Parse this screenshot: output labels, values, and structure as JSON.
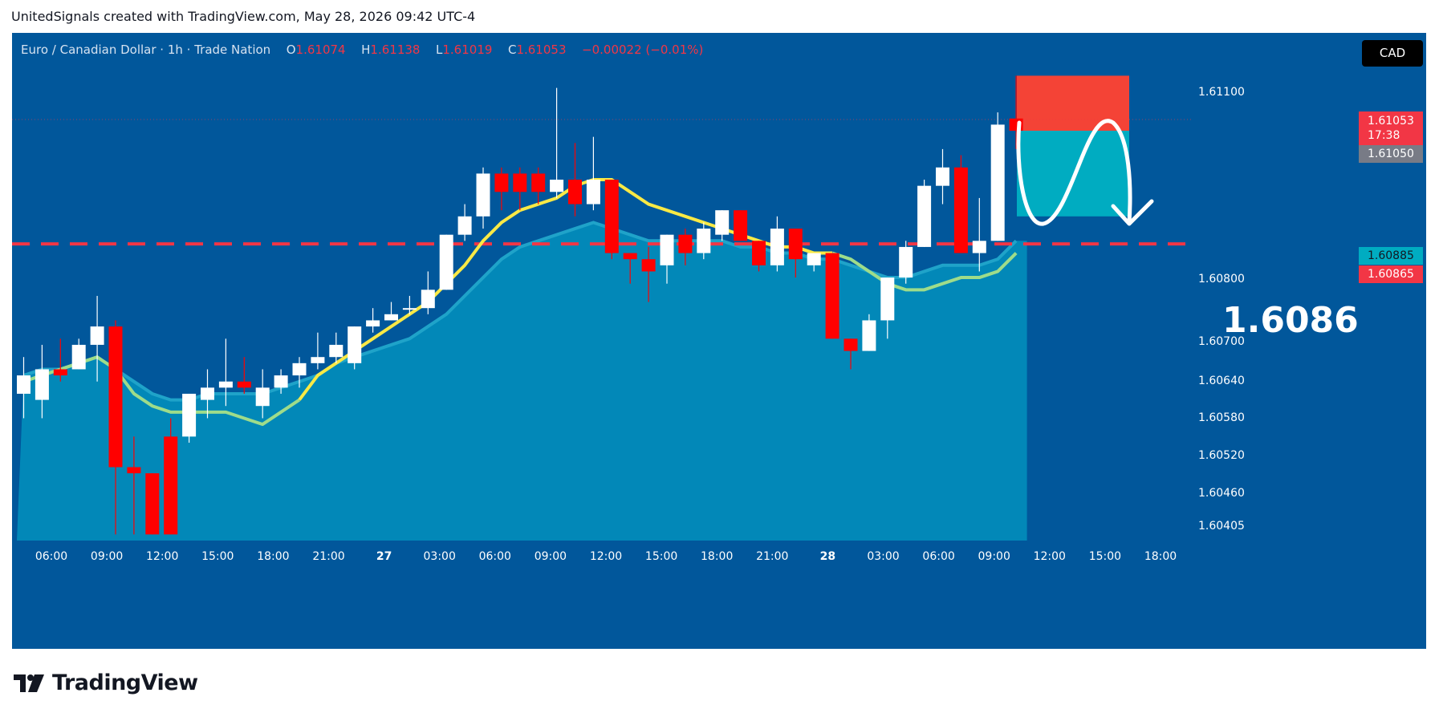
{
  "header": {
    "caption": "UnitedSignals created with TradingView.com, May 28, 2026 09:42 UTC-4"
  },
  "legend": {
    "symbol": "Euro / Canadian Dollar · 1h · Trade Nation",
    "open_label": "O",
    "open": "1.61074",
    "high_label": "H",
    "high": "1.61138",
    "low_label": "L",
    "low": "1.61019",
    "close_label": "C",
    "close": "1.61053",
    "change": "−0.00022 (−0.01%)"
  },
  "currency_button": "CAD",
  "price_tags": {
    "last_price": "1.61053",
    "countdown": "17:38",
    "grey_level": "1.61050",
    "teal_level": "1.60885",
    "red_level": "1.60865"
  },
  "target_label": "1.6086",
  "colors": {
    "background": "#01579b",
    "area_fill": "#0288b8",
    "bull_candle": "#ffffff",
    "bear_candle": "#ff0000",
    "ma_yellow": "#f9e945",
    "ma_green": "#9edc8a",
    "dashed_line": "#f23645",
    "stop_zone": "#f44336",
    "target_zone": "#00acc1"
  },
  "footer": {
    "brand": "TradingView",
    "logo_icon": "tradingview-logo-icon"
  },
  "chart_data": {
    "type": "candlestick",
    "y_ticks": [
      "1.61100",
      "1.60800",
      "1.60700",
      "1.60640",
      "1.60580",
      "1.60520",
      "1.60460",
      "1.60405"
    ],
    "ylim": [
      1.6038,
      1.6121
    ],
    "x_ticks": [
      "06:00",
      "09:00",
      "12:00",
      "15:00",
      "18:00",
      "21:00",
      "27",
      "03:00",
      "06:00",
      "09:00",
      "12:00",
      "15:00",
      "18:00",
      "21:00",
      "28",
      "03:00",
      "06:00",
      "09:00",
      "12:00",
      "15:00",
      "18:00"
    ],
    "candles": [
      {
        "o": 1.6062,
        "h": 1.6068,
        "l": 1.6058,
        "c": 1.6065
      },
      {
        "o": 1.6061,
        "h": 1.607,
        "l": 1.6058,
        "c": 1.6066
      },
      {
        "o": 1.6066,
        "h": 1.6071,
        "l": 1.6064,
        "c": 1.6065
      },
      {
        "o": 1.6066,
        "h": 1.6071,
        "l": 1.6066,
        "c": 1.607
      },
      {
        "o": 1.607,
        "h": 1.6078,
        "l": 1.6064,
        "c": 1.6073
      },
      {
        "o": 1.6073,
        "h": 1.6074,
        "l": 1.6039,
        "c": 1.605
      },
      {
        "o": 1.605,
        "h": 1.6055,
        "l": 1.6039,
        "c": 1.6049
      },
      {
        "o": 1.6049,
        "h": 1.6049,
        "l": 1.6039,
        "c": 1.6039
      },
      {
        "o": 1.6055,
        "h": 1.6058,
        "l": 1.6039,
        "c": 1.6039
      },
      {
        "o": 1.6055,
        "h": 1.6062,
        "l": 1.6054,
        "c": 1.6062
      },
      {
        "o": 1.6061,
        "h": 1.6066,
        "l": 1.6058,
        "c": 1.6063
      },
      {
        "o": 1.6063,
        "h": 1.6071,
        "l": 1.606,
        "c": 1.6064
      },
      {
        "o": 1.6064,
        "h": 1.6068,
        "l": 1.6062,
        "c": 1.6063
      },
      {
        "o": 1.606,
        "h": 1.6066,
        "l": 1.6058,
        "c": 1.6063
      },
      {
        "o": 1.6063,
        "h": 1.6066,
        "l": 1.6062,
        "c": 1.6065
      },
      {
        "o": 1.6065,
        "h": 1.6068,
        "l": 1.6063,
        "c": 1.6067
      },
      {
        "o": 1.6067,
        "h": 1.6072,
        "l": 1.6066,
        "c": 1.6068
      },
      {
        "o": 1.6068,
        "h": 1.6072,
        "l": 1.6067,
        "c": 1.607
      },
      {
        "o": 1.6067,
        "h": 1.6073,
        "l": 1.6066,
        "c": 1.6073
      },
      {
        "o": 1.6073,
        "h": 1.6076,
        "l": 1.6072,
        "c": 1.6074
      },
      {
        "o": 1.6074,
        "h": 1.6077,
        "l": 1.6074,
        "c": 1.6075
      },
      {
        "o": 1.6076,
        "h": 1.6078,
        "l": 1.6075,
        "c": 1.6076
      },
      {
        "o": 1.6076,
        "h": 1.6082,
        "l": 1.6075,
        "c": 1.6079
      },
      {
        "o": 1.6079,
        "h": 1.6088,
        "l": 1.6079,
        "c": 1.6088
      },
      {
        "o": 1.6088,
        "h": 1.6093,
        "l": 1.6087,
        "c": 1.6091
      },
      {
        "o": 1.6091,
        "h": 1.6099,
        "l": 1.6089,
        "c": 1.6098
      },
      {
        "o": 1.6098,
        "h": 1.6099,
        "l": 1.6092,
        "c": 1.6095
      },
      {
        "o": 1.6098,
        "h": 1.6099,
        "l": 1.6092,
        "c": 1.6095
      },
      {
        "o": 1.6098,
        "h": 1.6099,
        "l": 1.6093,
        "c": 1.6095
      },
      {
        "o": 1.6095,
        "h": 1.6112,
        "l": 1.6094,
        "c": 1.6097
      },
      {
        "o": 1.6097,
        "h": 1.6103,
        "l": 1.6091,
        "c": 1.6093
      },
      {
        "o": 1.6093,
        "h": 1.6104,
        "l": 1.6092,
        "c": 1.6097
      },
      {
        "o": 1.6097,
        "h": 1.6097,
        "l": 1.6084,
        "c": 1.6085
      },
      {
        "o": 1.6085,
        "h": 1.6085,
        "l": 1.608,
        "c": 1.6084
      },
      {
        "o": 1.6084,
        "h": 1.6086,
        "l": 1.6077,
        "c": 1.6082
      },
      {
        "o": 1.6083,
        "h": 1.6088,
        "l": 1.608,
        "c": 1.6088
      },
      {
        "o": 1.6088,
        "h": 1.6089,
        "l": 1.6083,
        "c": 1.6085
      },
      {
        "o": 1.6085,
        "h": 1.609,
        "l": 1.6084,
        "c": 1.6089
      },
      {
        "o": 1.6088,
        "h": 1.6092,
        "l": 1.6087,
        "c": 1.6092
      },
      {
        "o": 1.6092,
        "h": 1.6092,
        "l": 1.6087,
        "c": 1.6087
      },
      {
        "o": 1.6087,
        "h": 1.6087,
        "l": 1.6082,
        "c": 1.6083
      },
      {
        "o": 1.6083,
        "h": 1.6091,
        "l": 1.6082,
        "c": 1.6089
      },
      {
        "o": 1.6089,
        "h": 1.6089,
        "l": 1.6081,
        "c": 1.6084
      },
      {
        "o": 1.6083,
        "h": 1.6085,
        "l": 1.6082,
        "c": 1.6085
      },
      {
        "o": 1.6085,
        "h": 1.6085,
        "l": 1.6071,
        "c": 1.6071
      },
      {
        "o": 1.6071,
        "h": 1.6071,
        "l": 1.6066,
        "c": 1.6069
      },
      {
        "o": 1.6069,
        "h": 1.6075,
        "l": 1.6069,
        "c": 1.6074
      },
      {
        "o": 1.6074,
        "h": 1.6081,
        "l": 1.6071,
        "c": 1.6081
      },
      {
        "o": 1.6081,
        "h": 1.6087,
        "l": 1.608,
        "c": 1.6086
      },
      {
        "o": 1.6086,
        "h": 1.6097,
        "l": 1.6086,
        "c": 1.6096
      },
      {
        "o": 1.6096,
        "h": 1.6102,
        "l": 1.6093,
        "c": 1.6099
      },
      {
        "o": 1.6099,
        "h": 1.6101,
        "l": 1.6085,
        "c": 1.6085
      },
      {
        "o": 1.6085,
        "h": 1.6094,
        "l": 1.6082,
        "c": 1.6087
      },
      {
        "o": 1.6087,
        "h": 1.6108,
        "l": 1.6087,
        "c": 1.6106
      },
      {
        "o": 1.6107,
        "h": 1.6114,
        "l": 1.6102,
        "c": 1.6105
      }
    ],
    "ma_yellow": [
      1.6064,
      1.6065,
      1.6066,
      1.6067,
      1.6068,
      1.6066,
      1.6062,
      1.606,
      1.6059,
      1.6059,
      1.6059,
      1.6059,
      1.6058,
      1.6057,
      1.6059,
      1.6061,
      1.6065,
      1.6067,
      1.6069,
      1.6071,
      1.6073,
      1.6075,
      1.6077,
      1.608,
      1.6083,
      1.6087,
      1.609,
      1.6092,
      1.6093,
      1.6094,
      1.6096,
      1.6097,
      1.6097,
      1.6095,
      1.6093,
      1.6092,
      1.6091,
      1.609,
      1.6089,
      1.6088,
      1.6087,
      1.6086,
      1.6086,
      1.6085,
      1.6085,
      1.6084,
      1.6082,
      1.608,
      1.6079,
      1.6079,
      1.608,
      1.6081,
      1.6081,
      1.6082,
      1.6085
    ],
    "ma_green": [
      1.6064,
      1.6065,
      1.6066,
      1.6067,
      1.6068,
      1.6066,
      1.6062,
      1.606,
      1.6059,
      1.6059,
      1.6059,
      1.6059,
      1.6058,
      1.6057,
      1.6059,
      1.6061,
      1.6065,
      1.6067,
      1.6069,
      1.6071,
      1.6073,
      1.6075,
      1.6077,
      1.608,
      1.6083,
      1.6087,
      1.609,
      1.6092,
      1.6093,
      1.6094,
      1.6096,
      1.6097,
      1.6097,
      1.6095,
      1.6093,
      1.6092,
      1.6091,
      1.609,
      1.6089,
      1.6088,
      1.6087,
      1.6086,
      1.6086,
      1.6085,
      1.6085,
      1.6084,
      1.6082,
      1.608,
      1.6079,
      1.6079,
      1.608,
      1.6081,
      1.6081,
      1.6082,
      1.6085
    ],
    "area_ma": [
      1.6065,
      1.6066,
      1.6066,
      1.6067,
      1.6068,
      1.6066,
      1.6064,
      1.6062,
      1.6061,
      1.6061,
      1.6062,
      1.6062,
      1.6062,
      1.6062,
      1.6063,
      1.6064,
      1.6065,
      1.6067,
      1.6068,
      1.6069,
      1.607,
      1.6071,
      1.6073,
      1.6075,
      1.6078,
      1.6081,
      1.6084,
      1.6086,
      1.6087,
      1.6088,
      1.6089,
      1.609,
      1.6089,
      1.6088,
      1.6087,
      1.6087,
      1.6087,
      1.6087,
      1.6087,
      1.6086,
      1.6086,
      1.6085,
      1.6085,
      1.6084,
      1.6084,
      1.6083,
      1.6082,
      1.6081,
      1.6081,
      1.6082,
      1.6083,
      1.6083,
      1.6083,
      1.6084,
      1.6087
    ],
    "levels": {
      "dashed": 1.60865,
      "zone_stop_top": 1.6114,
      "zone_entry": 1.6105,
      "zone_target": 1.6091
    },
    "grid": false,
    "legend_position": "top-left"
  }
}
